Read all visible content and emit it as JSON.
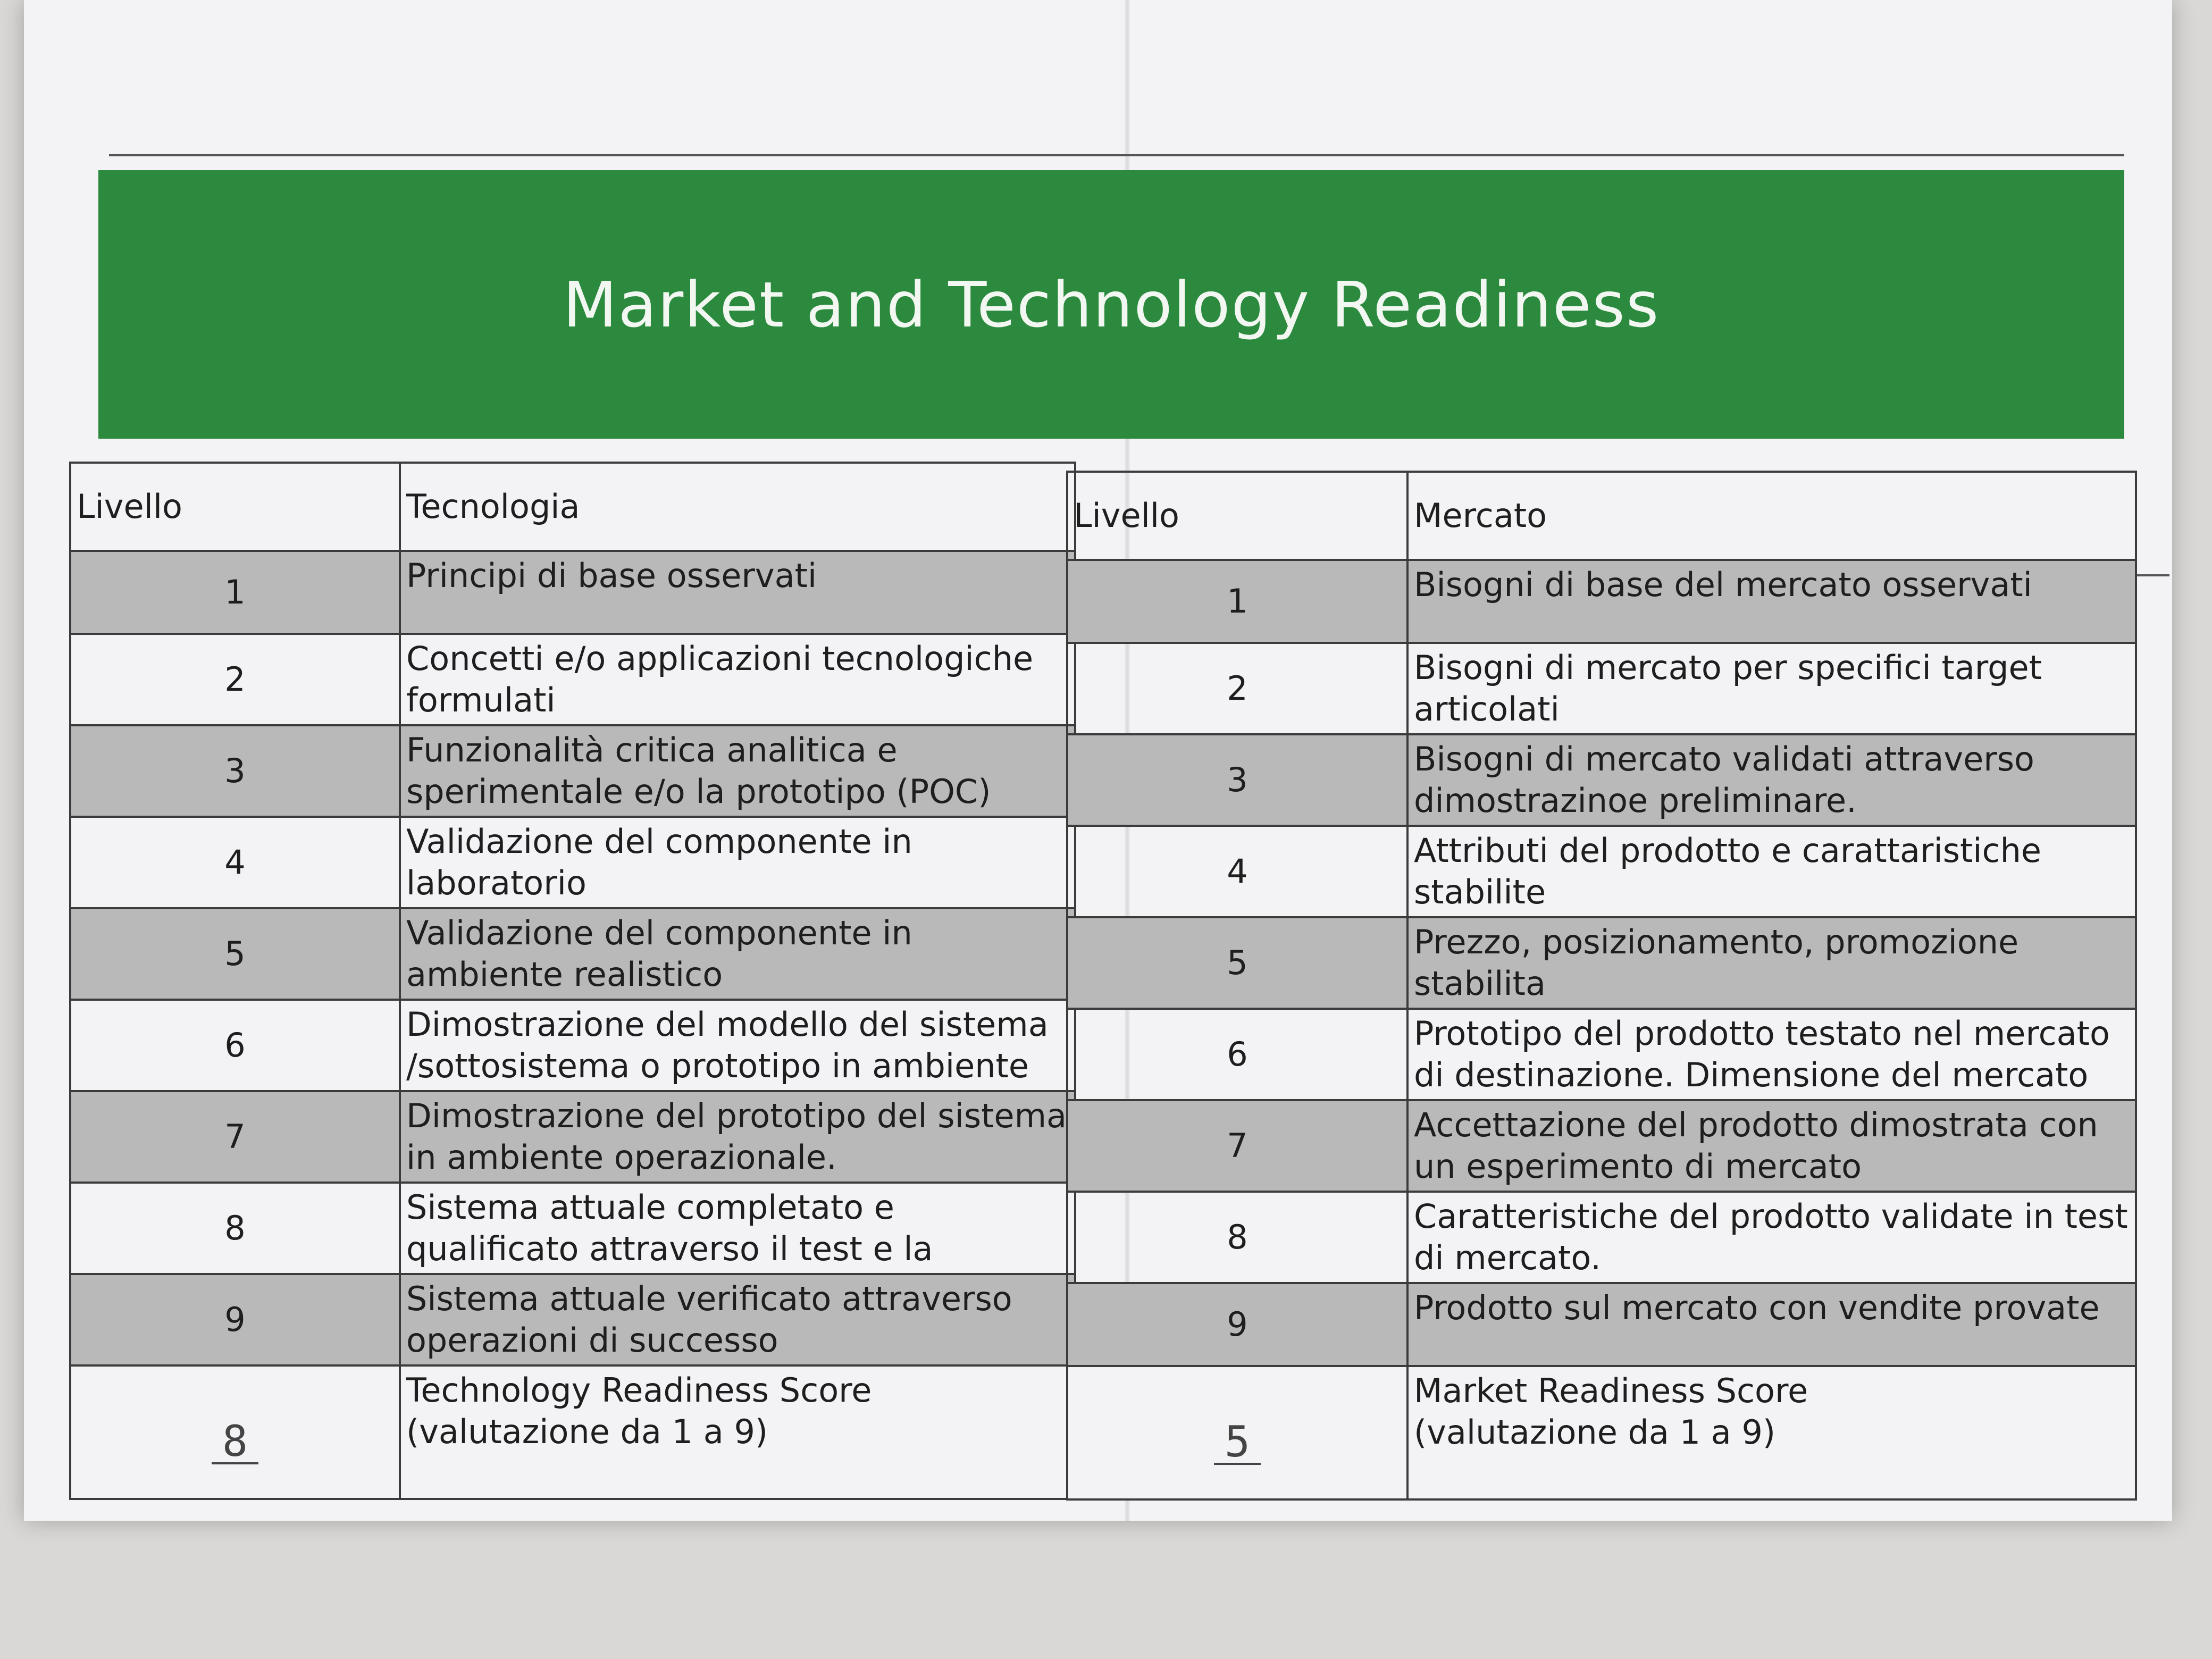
{
  "title": "Market and Technology Readiness",
  "technology_table": {
    "headers": [
      "Livello",
      "Tecnologia"
    ],
    "rows": [
      {
        "level": "1",
        "text": "Principi di base osservati"
      },
      {
        "level": "2",
        "text": "Concetti e/o applicazioni tecnologiche formulati"
      },
      {
        "level": "3",
        "text": "Funzionalità critica analitica e sperimentale e/o la prototipo (POC)"
      },
      {
        "level": "4",
        "text": "Validazione del componente in laboratorio"
      },
      {
        "level": "5",
        "text": "Validazione del componente in ambiente realistico"
      },
      {
        "level": "6",
        "text": "Dimostrazione del modello del sistema /sottosistema o prototipo in ambiente"
      },
      {
        "level": "7",
        "text": "Dimostrazione del prototipo del sistema in ambiente operazionale."
      },
      {
        "level": "8",
        "text": "Sistema attuale completato e qualificato attraverso il test e la"
      },
      {
        "level": "9",
        "text": "Sistema attuale verificato attraverso operazioni di successo"
      }
    ],
    "score_value": "8",
    "score_label": "Technology Readiness Score",
    "score_note": "(valutazione da 1 a 9)"
  },
  "market_table": {
    "headers": [
      "Livello",
      "Mercato"
    ],
    "rows": [
      {
        "level": "1",
        "text": "Bisogni di base del mercato osservati"
      },
      {
        "level": "2",
        "text": "Bisogni di mercato per specifici target articolati"
      },
      {
        "level": "3",
        "text": "Bisogni di mercato validati attraverso dimostrazinoe preliminare."
      },
      {
        "level": "4",
        "text": "Attributi del prodotto e carattaristiche stabilite"
      },
      {
        "level": "5",
        "text": "Prezzo, posizionamento, promozione stabilita"
      },
      {
        "level": "6",
        "text": "Prototipo del prodotto testato nel mercato di destinazione. Dimensione del mercato"
      },
      {
        "level": "7",
        "text": "Accettazione del prodotto dimostrata con un esperimento di mercato"
      },
      {
        "level": "8",
        "text": "Caratteristiche del prodotto validate in test di mercato."
      },
      {
        "level": "9",
        "text": "Prodotto sul mercato con vendite provate"
      }
    ],
    "score_value": "5",
    "score_label": "Market Readiness Score",
    "score_note": "(valutazione da 1 a 9)"
  },
  "colors": {
    "banner": "#2b8a3e",
    "shaded_row": "#b9b9b9",
    "paper": "#f3f3f5"
  }
}
